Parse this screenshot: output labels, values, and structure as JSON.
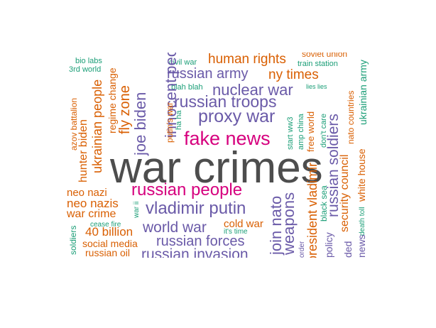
{
  "colors": {
    "dark": "#4d4d4d",
    "purple": "#6a5aa8",
    "orange": "#d95f02",
    "green": "#1b9e77",
    "magenta": "#d6007e"
  },
  "words": [
    {
      "text": "war crimes",
      "color": "dark"
    },
    {
      "text": "fake news",
      "color": "magenta"
    },
    {
      "text": "russian people",
      "color": "magenta"
    },
    {
      "text": "proxy war",
      "color": "purple"
    },
    {
      "text": "vladimir putin",
      "color": "purple"
    },
    {
      "text": "russian troops",
      "color": "purple"
    },
    {
      "text": "russian army",
      "color": "purple"
    },
    {
      "text": "nuclear war",
      "color": "purple"
    },
    {
      "text": "world war",
      "color": "purple"
    },
    {
      "text": "russian forces",
      "color": "purple"
    },
    {
      "text": "russian invasion",
      "color": "purple"
    },
    {
      "text": "human rights",
      "color": "orange"
    },
    {
      "text": "ny times",
      "color": "orange"
    },
    {
      "text": "neo nazi",
      "color": "orange"
    },
    {
      "text": "neo nazis",
      "color": "orange"
    },
    {
      "text": "war crime",
      "color": "orange"
    },
    {
      "text": "40 billion",
      "color": "orange"
    },
    {
      "text": "social media",
      "color": "orange"
    },
    {
      "text": "russian oil",
      "color": "orange"
    },
    {
      "text": "cold war",
      "color": "orange"
    },
    {
      "text": "bio labs",
      "color": "green"
    },
    {
      "text": "3rd world",
      "color": "green"
    },
    {
      "text": "civil war",
      "color": "green"
    },
    {
      "text": "train station",
      "color": "green"
    },
    {
      "text": "blah blah",
      "color": "green"
    },
    {
      "text": "lies lies",
      "color": "green"
    },
    {
      "text": "it's time",
      "color": "green"
    },
    {
      "text": "cease fire",
      "color": "green"
    },
    {
      "text": "soviet union",
      "color": "orange"
    },
    {
      "text": "joe biden",
      "color": "purple"
    },
    {
      "text": "innocent people",
      "color": "purple"
    },
    {
      "text": "fly zone",
      "color": "orange"
    },
    {
      "text": "regime change",
      "color": "orange"
    },
    {
      "text": "ukrainian people",
      "color": "orange"
    },
    {
      "text": "hunter biden",
      "color": "orange"
    },
    {
      "text": "azov battalion",
      "color": "orange"
    },
    {
      "text": "soldiers",
      "color": "green"
    },
    {
      "text": "war ii",
      "color": "green"
    },
    {
      "text": "putin's war",
      "color": "orange"
    },
    {
      "text": "ha ha",
      "color": "green"
    },
    {
      "text": "start ww3",
      "color": "green"
    },
    {
      "text": "amp china",
      "color": "green"
    },
    {
      "text": "free world",
      "color": "orange"
    },
    {
      "text": "don't care",
      "color": "green"
    },
    {
      "text": "russian soldiers",
      "color": "purple"
    },
    {
      "text": "nato countries",
      "color": "orange"
    },
    {
      "text": "ukrainian army",
      "color": "green"
    },
    {
      "text": "join nato",
      "color": "purple"
    },
    {
      "text": "weapons",
      "color": "purple"
    },
    {
      "text": "president vladimir",
      "color": "orange"
    },
    {
      "text": "black sea",
      "color": "green"
    },
    {
      "text": "security council",
      "color": "orange"
    },
    {
      "text": "white house",
      "color": "orange"
    },
    {
      "text": "death toll",
      "color": "green"
    },
    {
      "text": "order",
      "color": "purple"
    },
    {
      "text": "policy",
      "color": "purple"
    },
    {
      "text": "ded",
      "color": "purple"
    },
    {
      "text": "news",
      "color": "purple"
    }
  ]
}
